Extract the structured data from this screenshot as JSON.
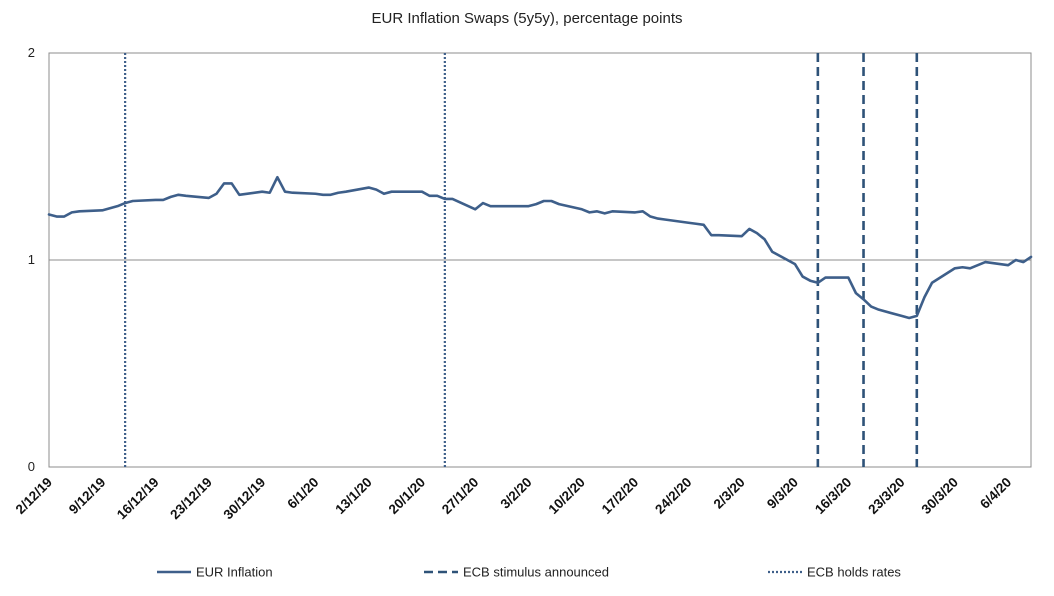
{
  "chart_data": {
    "type": "line",
    "title": "EUR Inflation Swaps (5y5y),  percentage points",
    "xlabel": "",
    "ylabel": "",
    "ylim": [
      0,
      2
    ],
    "yticks": [
      0,
      1,
      2
    ],
    "grid": "horizontal line at 1 only",
    "legend_position": "bottom",
    "start_date": "2019-12-02",
    "end_date": "2020-04-09",
    "x_tick_labels": [
      "2/12/19",
      "9/12/19",
      "16/12/19",
      "23/12/19",
      "30/12/19",
      "6/1/20",
      "13/1/20",
      "20/1/20",
      "27/1/20",
      "3/2/20",
      "10/2/20",
      "17/2/20",
      "24/2/20",
      "2/3/20",
      "9/3/20",
      "16/3/20",
      "23/3/20",
      "30/3/20",
      "6/4/20"
    ],
    "series": [
      {
        "name": "EUR Inflation",
        "color": "#3E5F8A",
        "style": "solid",
        "points": [
          [
            "2019-12-02",
            1.22
          ],
          [
            "2019-12-03",
            1.21
          ],
          [
            "2019-12-04",
            1.21
          ],
          [
            "2019-12-05",
            1.23
          ],
          [
            "2019-12-06",
            1.235
          ],
          [
            "2019-12-09",
            1.24
          ],
          [
            "2019-12-10",
            1.25
          ],
          [
            "2019-12-11",
            1.26
          ],
          [
            "2019-12-12",
            1.275
          ],
          [
            "2019-12-13",
            1.285
          ],
          [
            "2019-12-16",
            1.29
          ],
          [
            "2019-12-17",
            1.29
          ],
          [
            "2019-12-18",
            1.305
          ],
          [
            "2019-12-19",
            1.315
          ],
          [
            "2019-12-20",
            1.31
          ],
          [
            "2019-12-23",
            1.3
          ],
          [
            "2019-12-24",
            1.32
          ],
          [
            "2019-12-25",
            1.37
          ],
          [
            "2019-12-26",
            1.37
          ],
          [
            "2019-12-27",
            1.315
          ],
          [
            "2019-12-30",
            1.33
          ],
          [
            "2019-12-31",
            1.325
          ],
          [
            "2020-01-01",
            1.4
          ],
          [
            "2020-01-02",
            1.33
          ],
          [
            "2020-01-03",
            1.325
          ],
          [
            "2020-01-06",
            1.32
          ],
          [
            "2020-01-07",
            1.315
          ],
          [
            "2020-01-08",
            1.315
          ],
          [
            "2020-01-09",
            1.325
          ],
          [
            "2020-01-10",
            1.33
          ],
          [
            "2020-01-13",
            1.35
          ],
          [
            "2020-01-14",
            1.34
          ],
          [
            "2020-01-15",
            1.32
          ],
          [
            "2020-01-16",
            1.33
          ],
          [
            "2020-01-17",
            1.33
          ],
          [
            "2020-01-20",
            1.33
          ],
          [
            "2020-01-21",
            1.31
          ],
          [
            "2020-01-22",
            1.31
          ],
          [
            "2020-01-23",
            1.295
          ],
          [
            "2020-01-24",
            1.295
          ],
          [
            "2020-01-27",
            1.245
          ],
          [
            "2020-01-28",
            1.275
          ],
          [
            "2020-01-29",
            1.26
          ],
          [
            "2020-01-30",
            1.26
          ],
          [
            "2020-01-31",
            1.26
          ],
          [
            "2020-02-03",
            1.26
          ],
          [
            "2020-02-04",
            1.27
          ],
          [
            "2020-02-05",
            1.285
          ],
          [
            "2020-02-06",
            1.285
          ],
          [
            "2020-02-07",
            1.27
          ],
          [
            "2020-02-10",
            1.245
          ],
          [
            "2020-02-11",
            1.23
          ],
          [
            "2020-02-12",
            1.235
          ],
          [
            "2020-02-13",
            1.225
          ],
          [
            "2020-02-14",
            1.235
          ],
          [
            "2020-02-17",
            1.23
          ],
          [
            "2020-02-18",
            1.235
          ],
          [
            "2020-02-19",
            1.21
          ],
          [
            "2020-02-20",
            1.2
          ],
          [
            "2020-02-21",
            1.195
          ],
          [
            "2020-02-24",
            1.18
          ],
          [
            "2020-02-25",
            1.175
          ],
          [
            "2020-02-26",
            1.17
          ],
          [
            "2020-02-27",
            1.12
          ],
          [
            "2020-02-28",
            1.12
          ],
          [
            "2020-03-02",
            1.115
          ],
          [
            "2020-03-03",
            1.15
          ],
          [
            "2020-03-04",
            1.13
          ],
          [
            "2020-03-05",
            1.1
          ],
          [
            "2020-03-06",
            1.04
          ],
          [
            "2020-03-09",
            0.98
          ],
          [
            "2020-03-10",
            0.92
          ],
          [
            "2020-03-11",
            0.9
          ],
          [
            "2020-03-12",
            0.89
          ],
          [
            "2020-03-13",
            0.915
          ],
          [
            "2020-03-16",
            0.915
          ],
          [
            "2020-03-17",
            0.84
          ],
          [
            "2020-03-18",
            0.81
          ],
          [
            "2020-03-19",
            0.775
          ],
          [
            "2020-03-20",
            0.76
          ],
          [
            "2020-03-23",
            0.73
          ],
          [
            "2020-03-24",
            0.72
          ],
          [
            "2020-03-25",
            0.73
          ],
          [
            "2020-03-26",
            0.82
          ],
          [
            "2020-03-27",
            0.89
          ],
          [
            "2020-03-30",
            0.96
          ],
          [
            "2020-03-31",
            0.965
          ],
          [
            "2020-04-01",
            0.96
          ],
          [
            "2020-04-02",
            0.975
          ],
          [
            "2020-04-03",
            0.99
          ],
          [
            "2020-04-06",
            0.975
          ],
          [
            "2020-04-07",
            1.0
          ],
          [
            "2020-04-08",
            0.99
          ],
          [
            "2020-04-09",
            1.015
          ]
        ]
      },
      {
        "name": "ECB stimulus announced",
        "color": "#2E5278",
        "style": "dashed",
        "dates": [
          "2020-03-12",
          "2020-03-18",
          "2020-03-25"
        ]
      },
      {
        "name": "ECB holds rates",
        "color": "#3E5F8A",
        "style": "dotted",
        "dates": [
          "2019-12-12",
          "2020-01-23"
        ]
      }
    ]
  }
}
